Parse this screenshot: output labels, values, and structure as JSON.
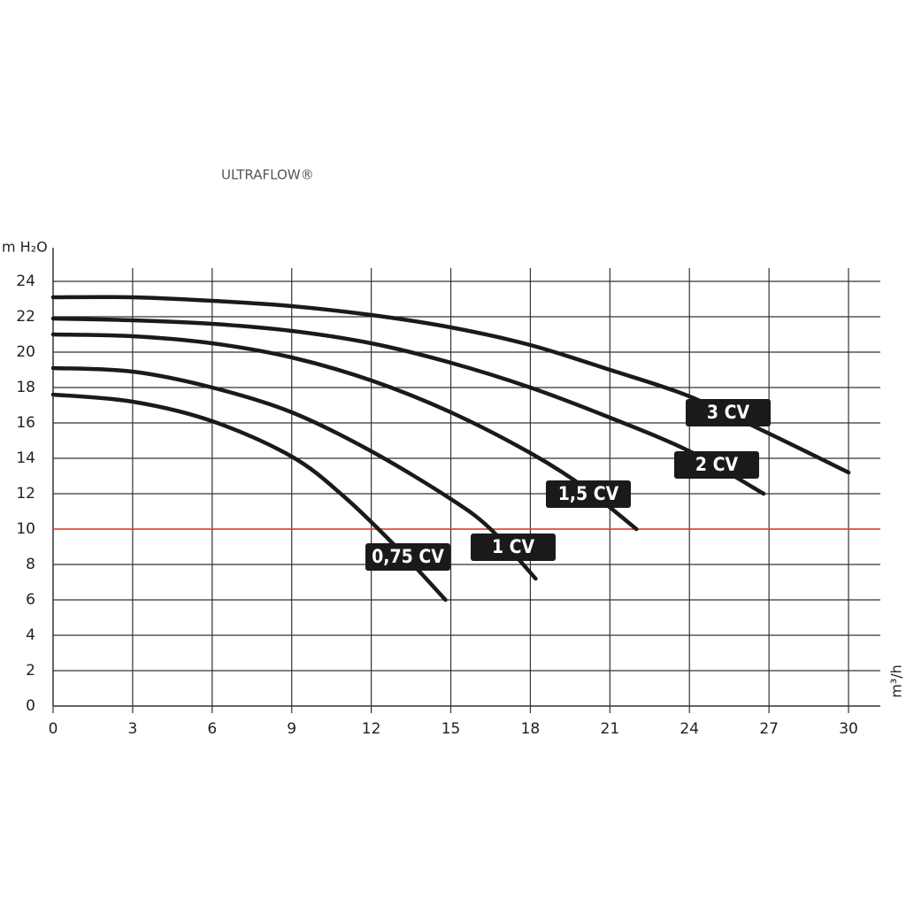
{
  "chart_data": {
    "type": "line",
    "title": "ULTRAFLOW®",
    "y_label": "m H₂O",
    "x_label": "m³/h",
    "xlim": [
      0,
      31.2
    ],
    "ylim": [
      0,
      25.9
    ],
    "xticks": [
      0,
      3,
      6,
      9,
      12,
      15,
      18,
      21,
      24,
      27,
      30
    ],
    "yticks": [
      0,
      2,
      4,
      6,
      8,
      10,
      12,
      14,
      16,
      18,
      20,
      22,
      24
    ],
    "grid": true,
    "reference_line": {
      "value": 10,
      "color": "#d9472b"
    },
    "series": [
      {
        "name": "3 CV",
        "color": "#1a1a1a",
        "x": [
          0,
          3,
          6,
          9,
          12,
          15,
          18,
          21,
          24,
          27,
          30
        ],
        "values": [
          23.1,
          23.1,
          22.9,
          22.6,
          22.1,
          21.4,
          20.4,
          19.0,
          17.5,
          15.4,
          13.2
        ]
      },
      {
        "name": "2 CV",
        "color": "#1a1a1a",
        "x": [
          0,
          3,
          6,
          9,
          12,
          15,
          18,
          21,
          24,
          26.8
        ],
        "values": [
          21.9,
          21.8,
          21.6,
          21.2,
          20.5,
          19.4,
          18.0,
          16.3,
          14.4,
          12.0
        ]
      },
      {
        "name": "1,5 CV",
        "color": "#1a1a1a",
        "x": [
          0,
          3,
          6,
          9,
          12,
          15,
          18,
          20,
          22
        ],
        "values": [
          21.0,
          20.9,
          20.5,
          19.7,
          18.4,
          16.6,
          14.3,
          12.4,
          10.0
        ]
      },
      {
        "name": "1 CV",
        "color": "#1a1a1a",
        "x": [
          0,
          3,
          6,
          9,
          12,
          15,
          16.5,
          18.2
        ],
        "values": [
          19.1,
          18.9,
          18.0,
          16.6,
          14.4,
          11.7,
          10.0,
          7.2
        ]
      },
      {
        "name": "0,75 CV",
        "color": "#1a1a1a",
        "x": [
          0,
          3,
          6,
          9,
          11,
          13,
          14.8
        ],
        "values": [
          17.6,
          17.2,
          16.1,
          14.1,
          11.8,
          8.9,
          6.0
        ]
      }
    ]
  }
}
